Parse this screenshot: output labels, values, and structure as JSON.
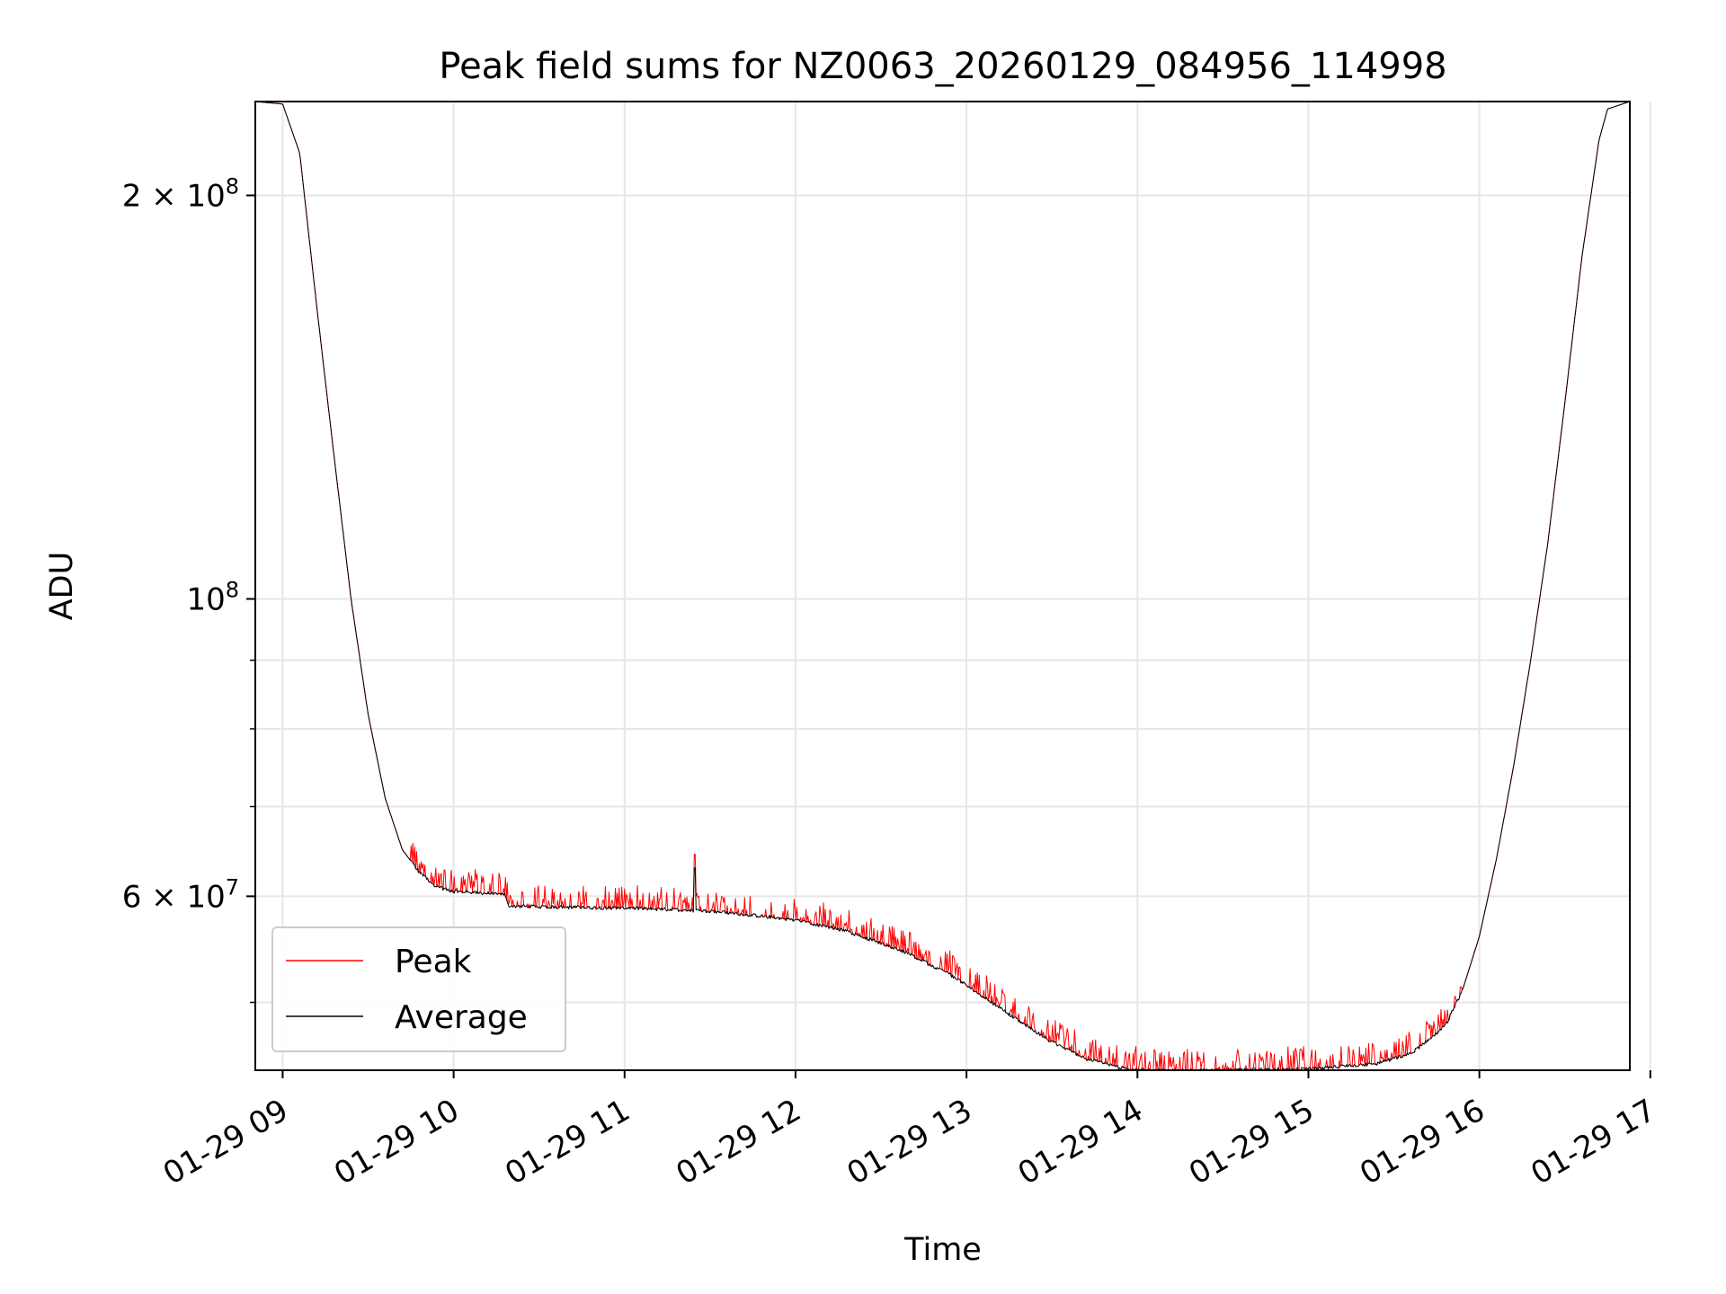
{
  "chart_data": {
    "type": "line",
    "title": "Peak field sums for NZ0063_20260129_084956_114998",
    "xlabel": "Time",
    "ylabel": "ADU",
    "y_scale": "log",
    "ylim": [
      44500000,
      235000000
    ],
    "xlim_hours": [
      8.84,
      16.88
    ],
    "x_ticks": [
      {
        "value": 9,
        "label": "01-29 09"
      },
      {
        "value": 10,
        "label": "01-29 10"
      },
      {
        "value": 11,
        "label": "01-29 11"
      },
      {
        "value": 12,
        "label": "01-29 12"
      },
      {
        "value": 13,
        "label": "01-29 13"
      },
      {
        "value": 14,
        "label": "01-29 14"
      },
      {
        "value": 15,
        "label": "01-29 15"
      },
      {
        "value": 16,
        "label": "01-29 16"
      },
      {
        "value": 17,
        "label": "01-29 17"
      }
    ],
    "y_major_ticks": [
      {
        "value": 60000000,
        "base": "6 × 10",
        "exp": "7"
      },
      {
        "value": 100000000,
        "base": "10",
        "exp": "8"
      },
      {
        "value": 200000000,
        "base": "2 × 10",
        "exp": "8"
      }
    ],
    "y_minor_ticks": [
      50000000,
      70000000,
      80000000,
      90000000
    ],
    "grid": true,
    "legend_position": "lower-left",
    "colors": {
      "peak": "#ff0000",
      "average": "#000000",
      "grid": "#e6e6e6"
    },
    "average_key_points": [
      [
        8.84,
        235000000
      ],
      [
        9.0,
        234000000
      ],
      [
        9.1,
        215000000
      ],
      [
        9.2,
        165000000
      ],
      [
        9.3,
        128000000
      ],
      [
        9.4,
        100000000
      ],
      [
        9.5,
        82000000
      ],
      [
        9.6,
        71000000
      ],
      [
        9.7,
        65000000
      ],
      [
        9.8,
        62500000
      ],
      [
        9.9,
        61000000
      ],
      [
        10.0,
        60500000
      ],
      [
        10.3,
        60200000
      ],
      [
        10.32,
        59000000
      ],
      [
        10.6,
        58900000
      ],
      [
        11.0,
        58800000
      ],
      [
        11.5,
        58500000
      ],
      [
        11.8,
        58000000
      ],
      [
        12.0,
        57600000
      ],
      [
        12.3,
        56500000
      ],
      [
        12.6,
        54800000
      ],
      [
        12.9,
        52500000
      ],
      [
        13.1,
        50500000
      ],
      [
        13.3,
        48500000
      ],
      [
        13.5,
        46700000
      ],
      [
        13.7,
        45400000
      ],
      [
        13.9,
        44700000
      ],
      [
        14.0,
        44500000
      ],
      [
        14.5,
        44500000
      ],
      [
        15.0,
        44600000
      ],
      [
        15.4,
        45000000
      ],
      [
        15.6,
        45800000
      ],
      [
        15.8,
        48000000
      ],
      [
        15.9,
        51000000
      ],
      [
        16.0,
        56000000
      ],
      [
        16.1,
        64000000
      ],
      [
        16.2,
        75000000
      ],
      [
        16.3,
        90000000
      ],
      [
        16.4,
        110000000
      ],
      [
        16.5,
        140000000
      ],
      [
        16.6,
        180000000
      ],
      [
        16.7,
        220000000
      ],
      [
        16.75,
        232000000
      ],
      [
        16.88,
        235000000
      ]
    ],
    "series": [
      {
        "name": "Peak",
        "color": "#ff0000",
        "line_width": 1
      },
      {
        "name": "Average",
        "color": "#000000",
        "line_width": 1
      }
    ]
  }
}
